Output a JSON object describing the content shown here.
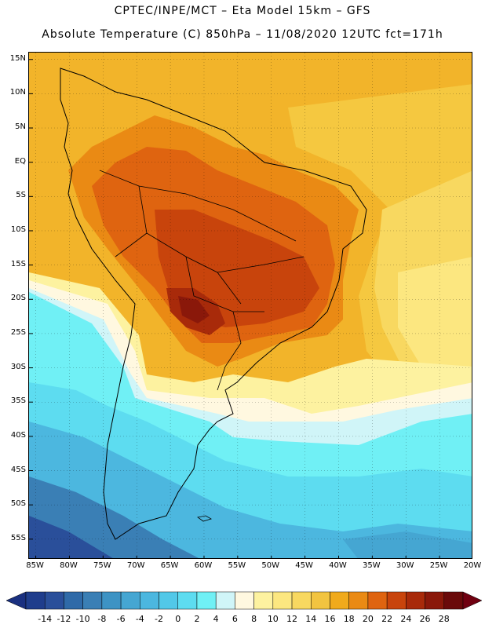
{
  "title": {
    "line1": "CPTEC/INPE/MCT –  Eta Model 15km – GFS",
    "line2": "Absolute Temperature (C) 850hPa – 11/08/2020 12UTC fct=171h"
  },
  "map": {
    "region": "South America",
    "field": "temperature_850hPa",
    "units": "C",
    "lat_range": [
      -58,
      16
    ],
    "lon_range": [
      -86,
      -20
    ],
    "lat_ticks": [
      {
        "value": 15,
        "label": "15N"
      },
      {
        "value": 10,
        "label": "10N"
      },
      {
        "value": 5,
        "label": "5N"
      },
      {
        "value": 0,
        "label": "EQ"
      },
      {
        "value": -5,
        "label": "5S"
      },
      {
        "value": -10,
        "label": "10S"
      },
      {
        "value": -15,
        "label": "15S"
      },
      {
        "value": -20,
        "label": "20S"
      },
      {
        "value": -25,
        "label": "25S"
      },
      {
        "value": -30,
        "label": "30S"
      },
      {
        "value": -35,
        "label": "35S"
      },
      {
        "value": -40,
        "label": "40S"
      },
      {
        "value": -45,
        "label": "45S"
      },
      {
        "value": -50,
        "label": "50S"
      },
      {
        "value": -55,
        "label": "55S"
      }
    ],
    "lon_ticks": [
      {
        "value": -85,
        "label": "85W"
      },
      {
        "value": -80,
        "label": "80W"
      },
      {
        "value": -75,
        "label": "75W"
      },
      {
        "value": -70,
        "label": "70W"
      },
      {
        "value": -65,
        "label": "65W"
      },
      {
        "value": -60,
        "label": "60W"
      },
      {
        "value": -55,
        "label": "55W"
      },
      {
        "value": -50,
        "label": "50W"
      },
      {
        "value": -45,
        "label": "45W"
      },
      {
        "value": -40,
        "label": "40W"
      },
      {
        "value": -35,
        "label": "35W"
      },
      {
        "value": -30,
        "label": "30W"
      },
      {
        "value": -25,
        "label": "25W"
      },
      {
        "value": -20,
        "label": "20W"
      }
    ]
  },
  "colorbar": {
    "labels": [
      "-14",
      "-12",
      "-10",
      "-8",
      "-6",
      "-4",
      "-2",
      "0",
      "2",
      "4",
      "6",
      "8",
      "10",
      "12",
      "14",
      "16",
      "18",
      "20",
      "22",
      "24",
      "26",
      "28"
    ],
    "colors": [
      "#1f3d8c",
      "#2a4f9a",
      "#2f6aa8",
      "#3a7fb5",
      "#3d93c4",
      "#45a6d2",
      "#4cb7df",
      "#52c8e8",
      "#5ddcf0",
      "#70f0f5",
      "#d0f5f8",
      "#fff8e0",
      "#fdf2a0",
      "#fce780",
      "#f8d860",
      "#f2c440",
      "#f0aa1c",
      "#ea8a14",
      "#df6410",
      "#c8440c",
      "#a82a0a",
      "#8a180a",
      "#6a0a0a"
    ],
    "under_color": "#1a3080",
    "over_color": "#700010"
  }
}
